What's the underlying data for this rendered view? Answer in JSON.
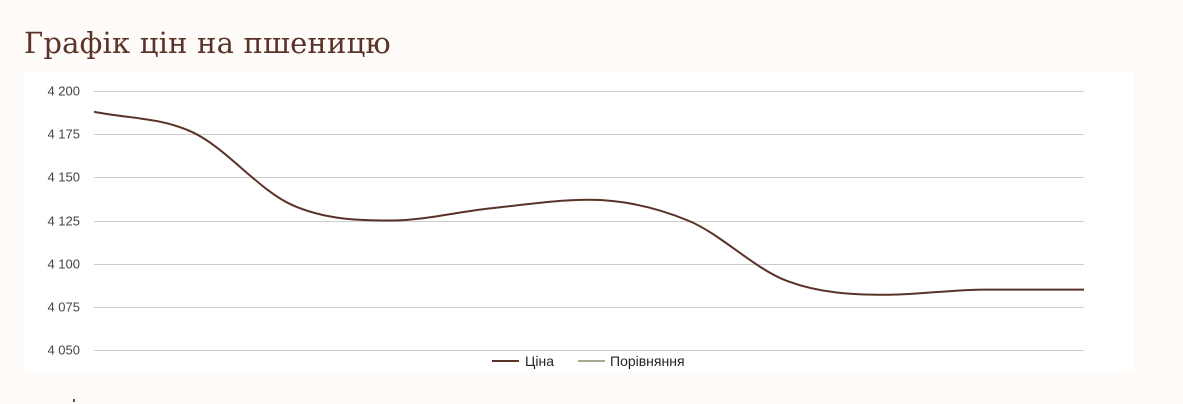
{
  "title": "Графік цін на пшеницю",
  "chart_data": {
    "type": "line",
    "y_ticks": [
      "4 200",
      "4 175",
      "4 150",
      "4 125",
      "4 100",
      "4 075",
      "4 050"
    ],
    "y_tick_values": [
      4200,
      4175,
      4150,
      4125,
      4100,
      4075,
      4050
    ],
    "ylim": [
      4050,
      4200
    ],
    "grid": true,
    "legend_position": "bottom-center",
    "series": [
      {
        "name": "Ціна",
        "color": "#5a3328",
        "values": [
          4188,
          4176,
          4134,
          4125,
          4132,
          4137,
          4125,
          4090,
          4082,
          4085,
          4085
        ]
      },
      {
        "name": "Порівняння",
        "color": "#a9a98f",
        "values": []
      }
    ]
  }
}
